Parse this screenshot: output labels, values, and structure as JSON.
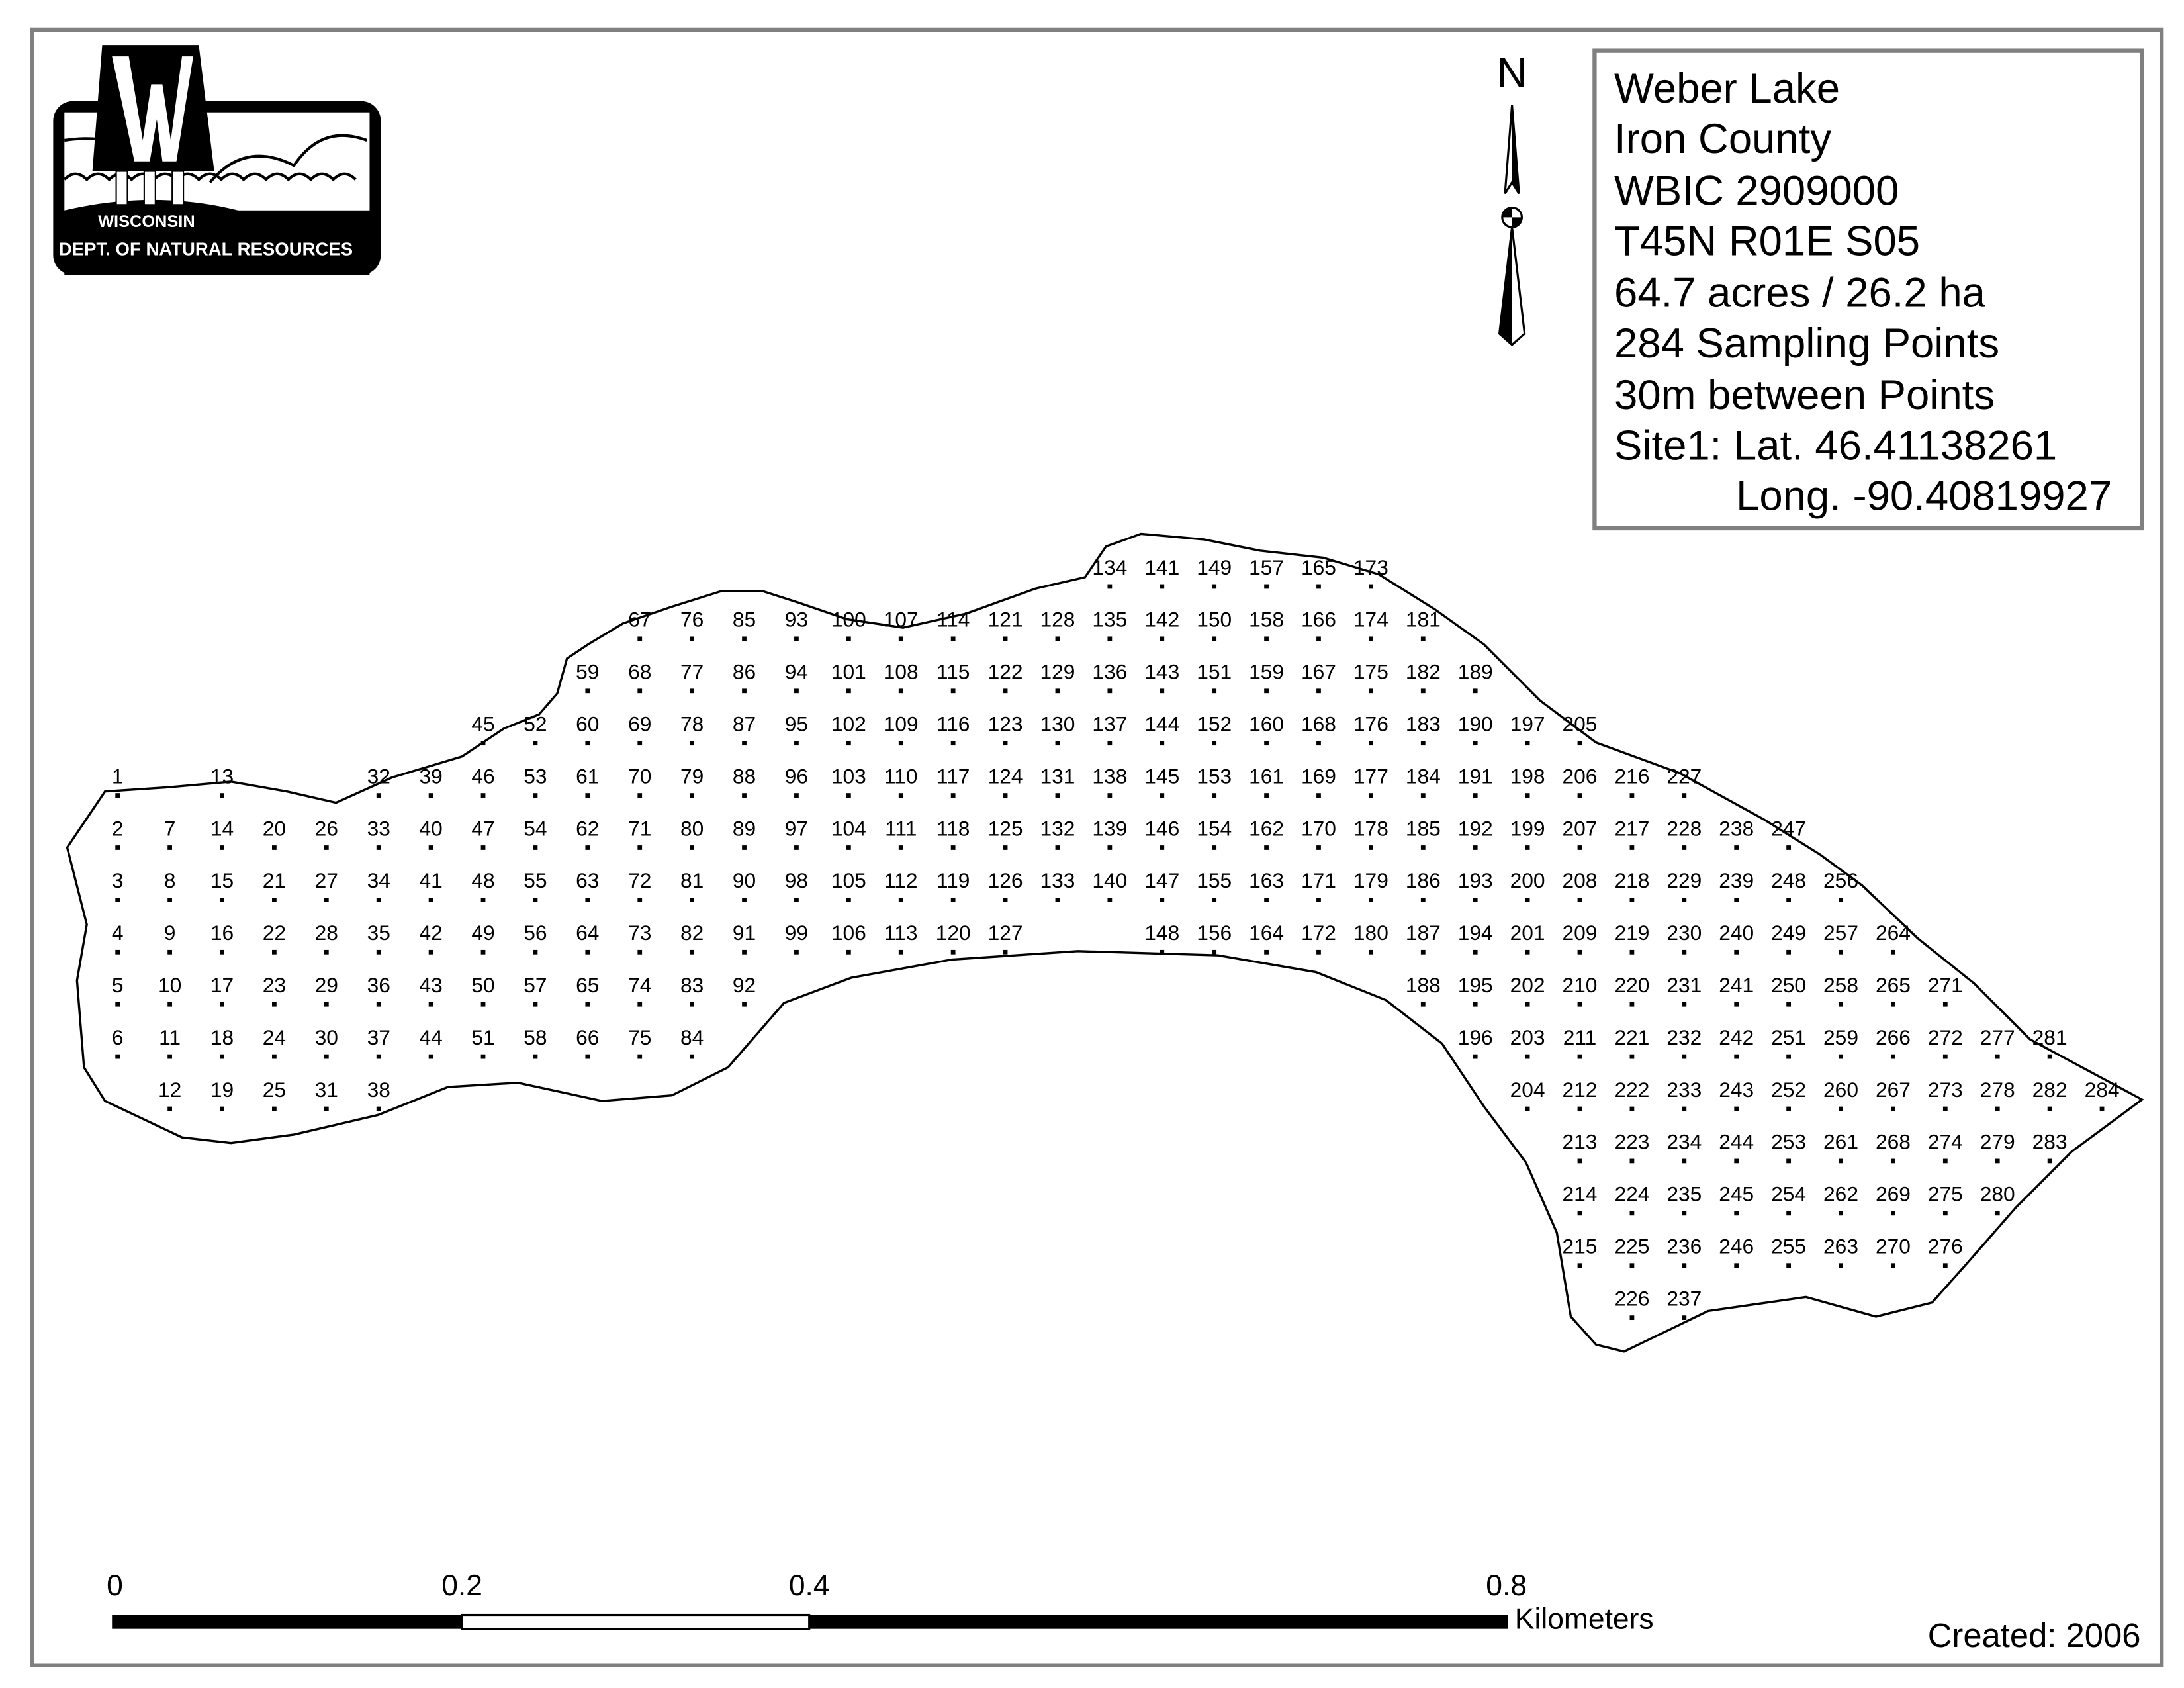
{
  "logo": {
    "line1": "WISCONSIN",
    "line2": "DEPT. OF NATURAL RESOURCES"
  },
  "north_arrow": {
    "label": "N"
  },
  "legend": {
    "lake_name": "Weber Lake",
    "county": "Iron County",
    "wbic": "WBIC 2909000",
    "location": "T45N R01E S05",
    "area": "64.7 acres / 26.2 ha",
    "point_count": "284 Sampling Points",
    "spacing": "30m between Points",
    "site1_lat": "Site1: Lat. 46.41138261",
    "site1_long": "Long. -90.40819927"
  },
  "scale_bar": {
    "ticks": [
      "0",
      "0.2",
      "0.4",
      "0.8"
    ],
    "units": "Kilometers"
  },
  "created": "Created: 2006",
  "sampling_point_columns": [
    [
      1,
      6
    ],
    [
      7,
      12
    ],
    [
      13,
      19
    ],
    [
      20,
      25
    ],
    [
      26,
      31
    ],
    [
      32,
      38
    ],
    [
      39,
      44
    ],
    [
      45,
      51
    ],
    [
      52,
      58
    ],
    [
      59,
      66
    ],
    [
      67,
      75
    ],
    [
      76,
      84
    ],
    [
      85,
      92
    ],
    [
      93,
      99
    ],
    [
      100,
      106
    ],
    [
      107,
      113
    ],
    [
      114,
      120
    ],
    [
      121,
      127
    ],
    [
      128,
      133
    ],
    [
      134,
      140
    ],
    [
      141,
      148
    ],
    [
      149,
      156
    ],
    [
      157,
      164
    ],
    [
      165,
      172
    ],
    [
      173,
      180
    ],
    [
      181,
      188
    ],
    [
      189,
      196
    ],
    [
      197,
      204
    ],
    [
      205,
      215
    ],
    [
      216,
      226
    ],
    [
      227,
      237
    ],
    [
      238,
      246
    ],
    [
      247,
      255
    ],
    [
      256,
      263
    ],
    [
      264,
      270
    ],
    [
      271,
      276
    ],
    [
      277,
      280
    ],
    [
      281,
      283
    ],
    [
      284,
      284
    ]
  ],
  "colors": {
    "ink": "#000000",
    "frame": "#808080",
    "background": "#ffffff"
  }
}
